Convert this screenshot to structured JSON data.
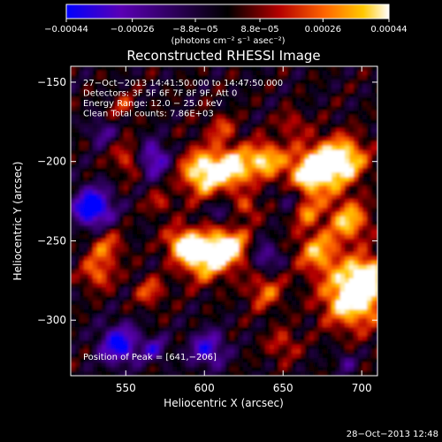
{
  "chart_data": {
    "type": "heatmap",
    "title": "Reconstructed RHESSI Image",
    "xlabel": "Heliocentric X (arcsec)",
    "ylabel": "Heliocentric Y (arcsec)",
    "xlim": [
      515,
      710
    ],
    "ylim": [
      -335,
      -140
    ],
    "x_ticks": [
      550,
      600,
      650,
      700
    ],
    "y_ticks": [
      -150,
      -200,
      -250,
      -300
    ],
    "x_tick_labels": [
      "550",
      "600",
      "650",
      "700"
    ],
    "y_tick_labels": [
      "−150",
      "−200",
      "−250",
      "−300"
    ],
    "colorbar": {
      "range": [
        -0.00044,
        0.00044
      ],
      "ticks": [
        -0.00044,
        -0.00026,
        -8.8e-05,
        8.8e-05,
        0.00026,
        0.00044
      ],
      "tick_labels": [
        "−0.00044",
        "−0.00026",
        "−8.8e−05",
        "8.8e−05",
        "0.00026",
        "0.00044"
      ],
      "units_label": "(photons cm⁻² s⁻¹ asec⁻²)",
      "colors": [
        "#0000ff",
        "#5a00b4",
        "#000000",
        "#b40000",
        "#ff6400",
        "#ffc800",
        "#ffffff"
      ]
    },
    "annotations": [
      "27−Oct−2013 14:41:50.000 to 14:47:50.000",
      "Detectors: 3F 5F 6F 7F 8F 9F, Att 0",
      "Energy Range: 12.0 − 25.0 keV",
      "Clean     Total counts: 7.86E+03"
    ],
    "peak_label": "Position of Peak = [641,−206]",
    "peak_position": [
      641,
      -206
    ],
    "timestamp": "28−Oct−2013 12:48"
  }
}
